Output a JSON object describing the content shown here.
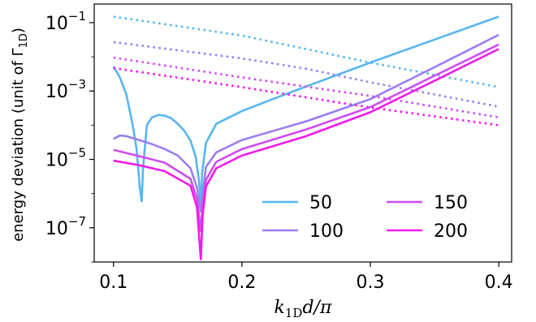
{
  "chart_data": {
    "type": "line",
    "xlabel": "k_{1D}d/π",
    "xlabel_parts": {
      "k": "k",
      "sub": "1D",
      "rest": "d/π"
    },
    "ylabel": "energy deviation (unit of Γ_{1D})",
    "ylabel_parts": {
      "main": "energy deviation (unit of Γ",
      "sub": "1D",
      "close": ")"
    },
    "x_scale": "linear",
    "y_scale": "log",
    "xlim": [
      0.085,
      0.41
    ],
    "ylim": [
      1e-08,
      0.35
    ],
    "x_ticks": [
      {
        "value": 0.1,
        "label": "0.1"
      },
      {
        "value": 0.2,
        "label": "0.2"
      },
      {
        "value": 0.3,
        "label": "0.3"
      },
      {
        "value": 0.4,
        "label": "0.4"
      }
    ],
    "y_ticks": [
      {
        "value": 0.1,
        "base": "10",
        "exp": "−1"
      },
      {
        "value": 0.001,
        "base": "10",
        "exp": "−3"
      },
      {
        "value": 1e-05,
        "base": "10",
        "exp": "−5"
      },
      {
        "value": 1e-07,
        "base": "10",
        "exp": "−7"
      }
    ],
    "grid": false,
    "legend": {
      "position": "lower-right",
      "columns": 2
    },
    "series": [
      {
        "name": "50",
        "color": "#57b6ee",
        "solid": [
          [
            0.1,
            0.0052
          ],
          [
            0.105,
            0.0025
          ],
          [
            0.11,
            0.0008
          ],
          [
            0.115,
            0.0001
          ],
          [
            0.118,
            2e-05
          ],
          [
            0.1205,
            1.5e-06
          ],
          [
            0.122,
            6e-07
          ],
          [
            0.123,
            5.5e-06
          ],
          [
            0.126,
            0.0001
          ],
          [
            0.13,
            0.00017
          ],
          [
            0.135,
            0.0002
          ],
          [
            0.14,
            0.00019
          ],
          [
            0.145,
            0.00016
          ],
          [
            0.15,
            0.00011
          ],
          [
            0.155,
            7e-05
          ],
          [
            0.16,
            3.5e-05
          ],
          [
            0.164,
            1.2e-05
          ],
          [
            0.1665,
            2.5e-06
          ],
          [
            0.168,
            5e-07
          ],
          [
            0.169,
            4e-06
          ],
          [
            0.172,
            3e-05
          ],
          [
            0.18,
            0.00011
          ],
          [
            0.2,
            0.00026
          ],
          [
            0.225,
            0.0006
          ],
          [
            0.25,
            0.00136
          ],
          [
            0.3,
            0.0068
          ],
          [
            0.35,
            0.032
          ],
          [
            0.4,
            0.15
          ]
        ],
        "dotted": [
          [
            0.1,
            0.15
          ],
          [
            0.2,
            0.042
          ],
          [
            0.3,
            0.0068
          ],
          [
            0.4,
            0.0013
          ]
        ]
      },
      {
        "name": "100",
        "color": "#9a7ff0",
        "solid": [
          [
            0.1,
            4e-05
          ],
          [
            0.105,
            5e-05
          ],
          [
            0.11,
            4.8e-05
          ],
          [
            0.12,
            3.7e-05
          ],
          [
            0.13,
            2.8e-05
          ],
          [
            0.14,
            2e-05
          ],
          [
            0.15,
            1.3e-05
          ],
          [
            0.16,
            5.5e-06
          ],
          [
            0.165,
            1.5e-06
          ],
          [
            0.168,
            3e-07
          ],
          [
            0.1695,
            1e-06
          ],
          [
            0.172,
            6e-06
          ],
          [
            0.18,
            1.6e-05
          ],
          [
            0.2,
            3.7e-05
          ],
          [
            0.25,
            0.00013
          ],
          [
            0.3,
            0.00058
          ],
          [
            0.35,
            0.005
          ],
          [
            0.4,
            0.044
          ]
        ],
        "dotted": [
          [
            0.1,
            0.027
          ],
          [
            0.2,
            0.009
          ],
          [
            0.25,
            0.0045
          ],
          [
            0.3,
            0.0018
          ],
          [
            0.4,
            0.00035
          ]
        ]
      },
      {
        "name": "150",
        "color": "#cf4cf0",
        "solid": [
          [
            0.1,
            1.9e-05
          ],
          [
            0.12,
            1.25e-05
          ],
          [
            0.14,
            8e-06
          ],
          [
            0.16,
            2.7e-06
          ],
          [
            0.165,
            7e-07
          ],
          [
            0.168,
            8e-08
          ],
          [
            0.1695,
            5e-07
          ],
          [
            0.172,
            2.5e-06
          ],
          [
            0.18,
            8.5e-06
          ],
          [
            0.2,
            2e-05
          ],
          [
            0.25,
            7.5e-05
          ],
          [
            0.3,
            0.00034
          ],
          [
            0.35,
            0.0028
          ],
          [
            0.4,
            0.023
          ]
        ],
        "dotted": [
          [
            0.1,
            0.0095
          ],
          [
            0.2,
            0.0025
          ],
          [
            0.3,
            0.00072
          ],
          [
            0.4,
            0.00017
          ]
        ]
      },
      {
        "name": "200",
        "color": "#f01bea",
        "solid": [
          [
            0.1,
            9.2e-06
          ],
          [
            0.12,
            6.8e-06
          ],
          [
            0.14,
            4.5e-06
          ],
          [
            0.16,
            1.7e-06
          ],
          [
            0.165,
            4e-07
          ],
          [
            0.168,
            1.2e-08
          ],
          [
            0.1695,
            2.5e-07
          ],
          [
            0.172,
            1.6e-06
          ],
          [
            0.18,
            5.5e-06
          ],
          [
            0.2,
            1.3e-05
          ],
          [
            0.25,
            4.8e-05
          ],
          [
            0.3,
            0.00024
          ],
          [
            0.35,
            0.002
          ],
          [
            0.4,
            0.017
          ]
        ],
        "dotted": [
          [
            0.1,
            0.0047
          ],
          [
            0.2,
            0.0013
          ],
          [
            0.3,
            0.00033
          ],
          [
            0.4,
            0.0001
          ]
        ]
      }
    ]
  }
}
